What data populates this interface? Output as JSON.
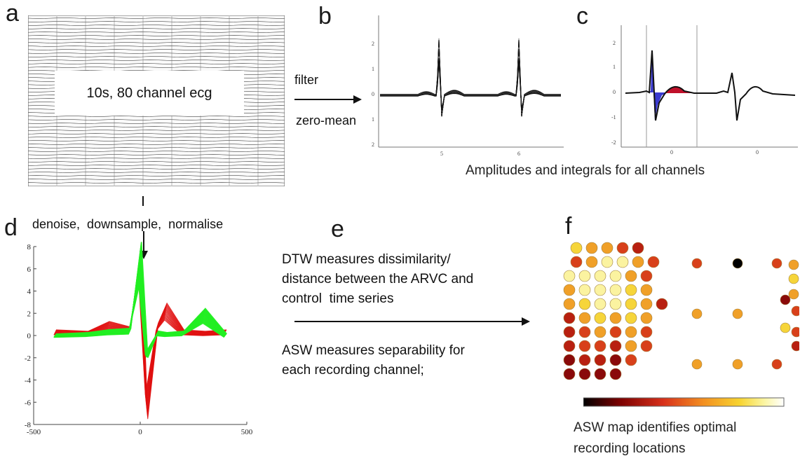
{
  "panels": {
    "a": "a",
    "b": "b",
    "c": "c",
    "d": "d",
    "e": "e",
    "f": "f"
  },
  "panel_a": {
    "label": "10s, 80 channel ecg"
  },
  "arrow_ab": {
    "top_label": "filter",
    "bottom_label": "zero-mean"
  },
  "panel_b": {
    "y_ticks": [
      "2",
      "1",
      "0",
      "1",
      "2"
    ],
    "x_ticks": [
      "5",
      "6"
    ]
  },
  "panel_c": {
    "y_ticks": [
      "2",
      "1",
      "0",
      "-1",
      "-2"
    ],
    "x_ticks": [
      "0",
      "0"
    ],
    "caption": "Amplitudes and integrals for all channels",
    "colors": {
      "qrs_integral": "#3a3ad0",
      "t_integral": "#c0102a"
    }
  },
  "panel_d": {
    "step_label": "denoise,  downsample,  normalise",
    "colors": {
      "arvc": "#e01010",
      "control": "#22ee22"
    }
  },
  "panel_e": {
    "dtw_text": [
      "DTW measures dissimilarity/",
      "distance between the ARVC and",
      "control  time series"
    ],
    "asw_text": [
      "ASW measures separability for",
      "each recording channel;"
    ]
  },
  "panel_f": {
    "caption_lines": [
      "ASW map identifies optimal",
      "recording locations"
    ],
    "colorbar": [
      "#000000",
      "#7a0000",
      "#d8301a",
      "#f39020",
      "#f7d430",
      "#fbf5a0",
      "#ffffff"
    ]
  },
  "chart_data": {
    "type": "line",
    "title": "",
    "xlabel": "",
    "ylabel": "",
    "xlim": [
      -500,
      500
    ],
    "ylim": [
      -8,
      8
    ],
    "x_ticks": [
      "-500",
      "0",
      "500"
    ],
    "y_ticks": [
      "8",
      "6",
      "4",
      "2",
      "0",
      "-2",
      "-4",
      "-6",
      "-8"
    ],
    "series": [
      {
        "x": [
          -400,
          -250,
          -150,
          -50,
          0,
          30,
          80,
          120,
          200,
          300,
          400
        ],
        "values": [
          0.3,
          0.2,
          0.9,
          0.5,
          6.5,
          -6.5,
          0.8,
          2.2,
          0.3,
          0.2,
          0.3
        ]
      },
      {
        "x": [
          -400,
          -250,
          -150,
          -50,
          0,
          30,
          80,
          120,
          200,
          300,
          400
        ],
        "values": [
          0.0,
          0.1,
          0.3,
          0.4,
          6.5,
          -1.8,
          0.2,
          0.1,
          0.2,
          1.8,
          0.0
        ]
      }
    ]
  }
}
